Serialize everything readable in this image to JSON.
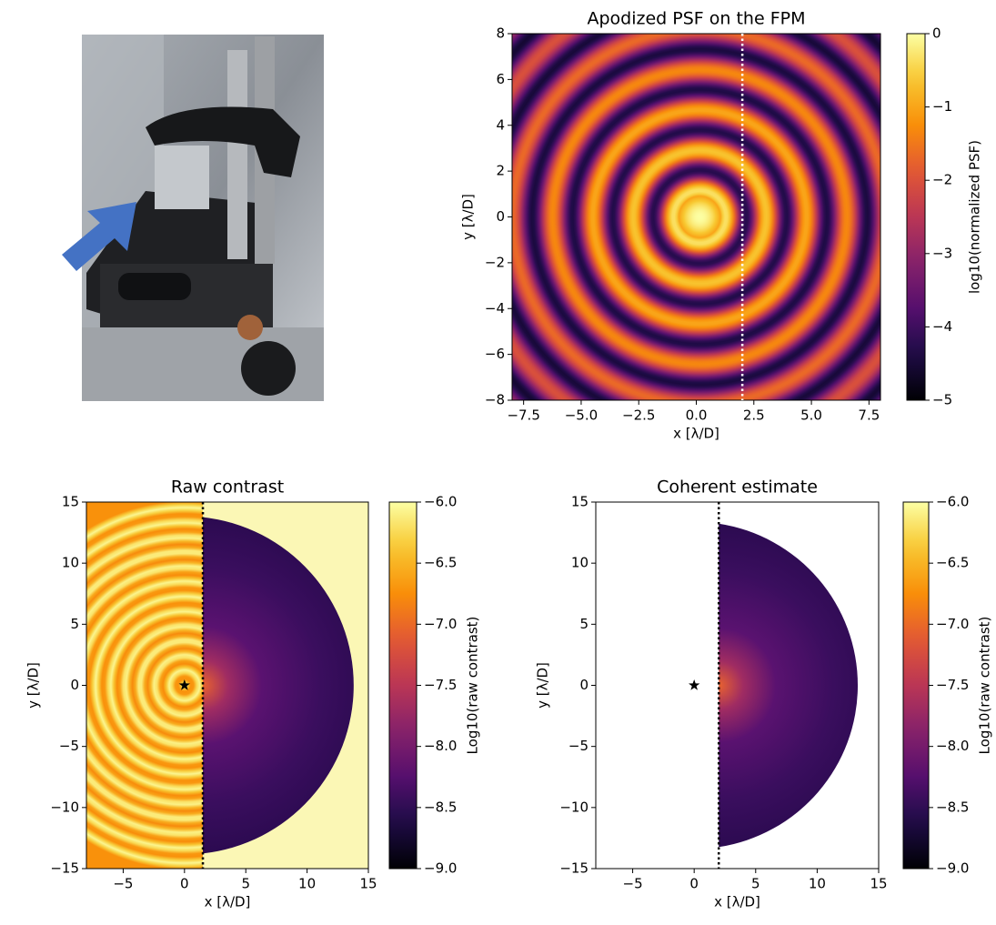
{
  "chart_data": [
    {
      "type": "heatmap",
      "title": "Apodized PSF on the FPM",
      "xlabel": "x [λ/D]",
      "ylabel": "y [λ/D]",
      "xlim": [
        -8,
        8
      ],
      "ylim": [
        -8,
        8
      ],
      "xticks": [
        {
          "value": -7.5,
          "label": "−7.5"
        },
        {
          "value": -5,
          "label": "−5.0"
        },
        {
          "value": -2.5,
          "label": "−2.5"
        },
        {
          "value": 0,
          "label": "0.0"
        },
        2.5,
        {
          "value": 5,
          "label": "5.0"
        },
        7.5
      ],
      "yticks": [
        {
          "value": -8,
          "label": "−8"
        },
        {
          "value": -6,
          "label": "−6"
        },
        {
          "value": -4,
          "label": "−4"
        },
        {
          "value": -2,
          "label": "−2"
        },
        0,
        2,
        4,
        6,
        8
      ],
      "colorbar_label": "log10(normalized PSF)",
      "clim": [
        -5,
        0
      ],
      "cticks": [
        {
          "value": -5,
          "label": "−5"
        },
        {
          "value": -4,
          "label": "−4"
        },
        {
          "value": -3,
          "label": "−3"
        },
        {
          "value": -2,
          "label": "−2"
        },
        {
          "value": -1,
          "label": "−1"
        },
        0
      ],
      "vline": 2
    },
    {
      "type": "heatmap",
      "title": "Raw contrast",
      "xlabel": "x [λ/D]",
      "ylabel": "y [λ/D]",
      "xlim": [
        -8,
        15
      ],
      "ylim": [
        -15,
        15
      ],
      "xticks": [
        {
          "value": -5,
          "label": "−5"
        },
        0,
        5,
        10,
        15
      ],
      "yticks": [
        {
          "value": -15,
          "label": "−15"
        },
        {
          "value": -10,
          "label": "−10"
        },
        {
          "value": -5,
          "label": "−5"
        },
        0,
        5,
        10,
        15
      ],
      "colorbar_label": "Log10(raw contrast)",
      "clim": [
        -9,
        -6
      ],
      "cticks": [
        {
          "value": -9,
          "label": "−9.0"
        },
        {
          "value": -8.5,
          "label": "−8.5"
        },
        {
          "value": -8,
          "label": "−8.0"
        },
        {
          "value": -7.5,
          "label": "−7.5"
        },
        {
          "value": -7,
          "label": "−7.0"
        },
        {
          "value": -6.5,
          "label": "−6.5"
        },
        {
          "value": -6,
          "label": "−6.0"
        }
      ],
      "vline": 1.5,
      "marker": {
        "x": 0,
        "y": 0
      }
    },
    {
      "type": "heatmap",
      "title": "Coherent estimate",
      "xlabel": "x [λ/D]",
      "ylabel": "y [λ/D]",
      "xlim": [
        -8,
        15
      ],
      "ylim": [
        -15,
        15
      ],
      "xticks": [
        {
          "value": -5,
          "label": "−5"
        },
        0,
        5,
        10,
        15
      ],
      "yticks": [
        {
          "value": -15,
          "label": "−15"
        },
        {
          "value": -10,
          "label": "−10"
        },
        {
          "value": -5,
          "label": "−5"
        },
        0,
        5,
        10,
        15
      ],
      "colorbar_label": "Log10(raw contrast)",
      "clim": [
        -9,
        -6
      ],
      "cticks": [
        {
          "value": -9,
          "label": "−9.0"
        },
        {
          "value": -8.5,
          "label": "−8.5"
        },
        {
          "value": -8,
          "label": "−8.0"
        },
        {
          "value": -7.5,
          "label": "−7.5"
        },
        {
          "value": -7,
          "label": "−7.0"
        },
        {
          "value": -6.5,
          "label": "−6.5"
        },
        {
          "value": -6,
          "label": "−6.0"
        }
      ],
      "vline": 2,
      "marker": {
        "x": 0,
        "y": 0
      }
    }
  ]
}
